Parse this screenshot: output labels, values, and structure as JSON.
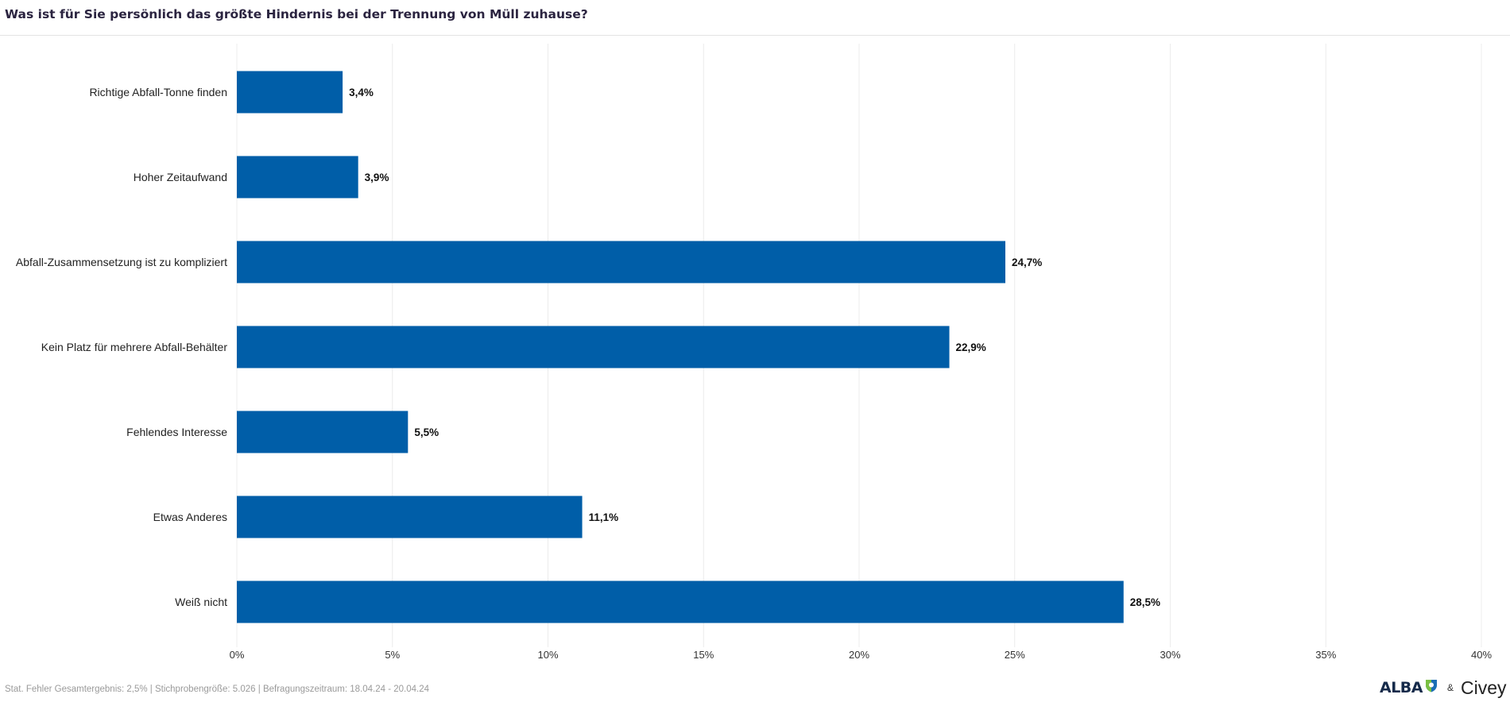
{
  "header": {
    "title": "Was ist für Sie persönlich das größte Hindernis bei der Trennung von Müll zuhause?"
  },
  "chart_data": {
    "type": "bar",
    "orientation": "horizontal",
    "categories": [
      "Richtige Abfall-Tonne finden",
      "Hoher Zeitaufwand",
      "Abfall-Zusammensetzung ist zu kompliziert",
      "Kein Platz für mehrere Abfall-Behälter",
      "Fehlendes Interesse",
      "Etwas Anderes",
      "Weiß nicht"
    ],
    "values": [
      3.4,
      3.9,
      24.7,
      22.9,
      5.5,
      11.1,
      28.5
    ],
    "data_labels": [
      "3,4%",
      "3,9%",
      "24,7%",
      "22,9%",
      "5,5%",
      "11,1%",
      "28,5%"
    ],
    "xlim": [
      0,
      40
    ],
    "x_ticks": [
      0,
      5,
      10,
      15,
      20,
      25,
      30,
      35,
      40
    ],
    "x_tick_labels": [
      "0%",
      "5%",
      "10%",
      "15%",
      "20%",
      "25%",
      "30%",
      "35%",
      "40%"
    ],
    "grid": true,
    "bar_color": "#005ea8",
    "grid_color": "#ececec"
  },
  "footer": {
    "note": "Stat. Fehler Gesamtergebnis: 2,5% | Stichprobengröße: 5.026 | Befragungszeitraum: 18.04.24 - 20.04.24"
  },
  "logos": {
    "alba": "ALBA",
    "amp": "&",
    "civey": "Civey",
    "shield_icon": "alba-shield-icon"
  }
}
